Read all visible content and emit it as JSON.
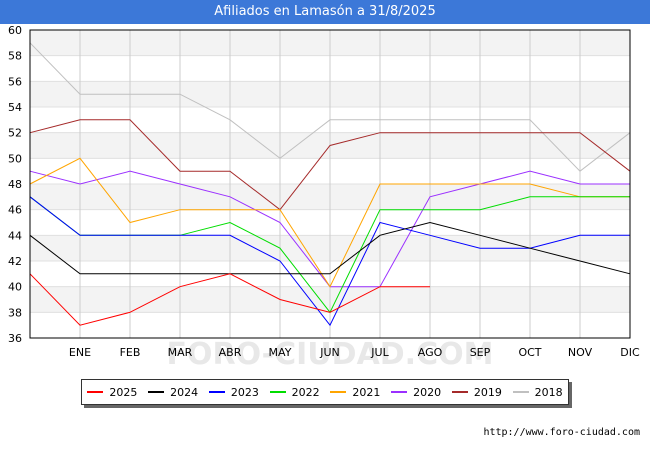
{
  "page": {
    "title": "Afiliados en Lamasón a 31/8/2025",
    "source": "http://www.foro-ciudad.com",
    "watermark": "FORO-CIUDAD.COM"
  },
  "chart_data": {
    "type": "line",
    "title": "Afiliados en Lamasón a 31/8/2025",
    "xlabel": "",
    "ylabel": "",
    "categories": [
      "",
      "ENE",
      "FEB",
      "MAR",
      "ABR",
      "MAY",
      "JUN",
      "JUL",
      "AGO",
      "SEP",
      "OCT",
      "NOV",
      "DIC"
    ],
    "ylim": [
      36,
      60
    ],
    "yticks": [
      36,
      38,
      40,
      42,
      44,
      46,
      48,
      50,
      52,
      54,
      56,
      58,
      60
    ],
    "grid": true,
    "legend": "bottom",
    "series": [
      {
        "name": "2025",
        "color": "#ff0000",
        "values": [
          41,
          37,
          38,
          40,
          41,
          39,
          38,
          40,
          40,
          null,
          null,
          null,
          null
        ]
      },
      {
        "name": "2024",
        "color": "#000000",
        "values": [
          44,
          41,
          41,
          41,
          41,
          41,
          41,
          44,
          45,
          44,
          43,
          42,
          41
        ]
      },
      {
        "name": "2023",
        "color": "#0000ff",
        "values": [
          47,
          44,
          44,
          44,
          44,
          42,
          37,
          45,
          44,
          43,
          43,
          44,
          44
        ]
      },
      {
        "name": "2022",
        "color": "#00dd00",
        "values": [
          47,
          44,
          44,
          44,
          45,
          43,
          38,
          46,
          46,
          46,
          47,
          47,
          47
        ]
      },
      {
        "name": "2021",
        "color": "#ffa500",
        "values": [
          48,
          50,
          45,
          46,
          46,
          46,
          40,
          48,
          48,
          48,
          48,
          47,
          47
        ]
      },
      {
        "name": "2020",
        "color": "#9b30ff",
        "values": [
          49,
          48,
          49,
          48,
          47,
          45,
          40,
          40,
          47,
          48,
          49,
          48,
          48
        ]
      },
      {
        "name": "2019",
        "color": "#a52a2a",
        "values": [
          52,
          53,
          53,
          49,
          49,
          46,
          51,
          52,
          52,
          52,
          52,
          52,
          49
        ]
      },
      {
        "name": "2018",
        "color": "#c0c0c0",
        "values": [
          59,
          55,
          55,
          55,
          53,
          50,
          53,
          53,
          53,
          53,
          53,
          49,
          52
        ]
      }
    ]
  }
}
